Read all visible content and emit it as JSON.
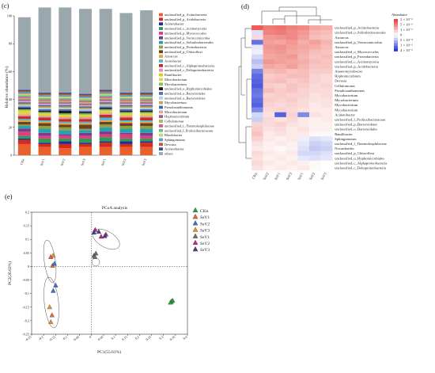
{
  "panels": {
    "c": "(c)",
    "d": "(d)",
    "e": "(e)"
  },
  "colors": {
    "others": "#9aa8ae",
    "heat_high": "#e8473e",
    "heat_mid": "#ffffff",
    "heat_low": "#2a3bd6",
    "pcoa_groups": [
      "#27a23b",
      "#e8643c",
      "#3a72c7",
      "#e5932f",
      "#6d6d6d",
      "#c1287c",
      "#4a3d8f"
    ]
  },
  "chart_data": [
    {
      "type": "bar",
      "stacked": true,
      "ylabel": "Relative abundance (%)",
      "ylim": [
        0,
        100
      ],
      "yticks": [
        0,
        20,
        40,
        60,
        80,
        100
      ],
      "categories": [
        "CKn",
        "SsV1",
        "SsV2",
        "SsV3",
        "SsV1",
        "SsV2",
        "SsV3"
      ],
      "legend_position": "right",
      "series": [
        {
          "name": "unclassified_p_Actinobacteria",
          "color": "#e8612c",
          "values": [
            8,
            6,
            5,
            6,
            6,
            6,
            6
          ]
        },
        {
          "name": "unclassified_p_Acidobacteria",
          "color": "#d8281f",
          "values": [
            3,
            2,
            3,
            2,
            3,
            2,
            3
          ]
        },
        {
          "name": "Acinetobacter",
          "color": "#1e2e8a",
          "values": [
            1,
            1,
            2,
            1,
            1,
            2,
            1
          ]
        },
        {
          "name": "unclassified_c_Actinomycetia",
          "color": "#2f9a55",
          "values": [
            2,
            3,
            2,
            3,
            3,
            2,
            2
          ]
        },
        {
          "name": "unclassified_p_Myxococcales",
          "color": "#e43a82",
          "values": [
            3,
            2,
            2,
            2,
            2,
            3,
            2
          ]
        },
        {
          "name": "unclassified_p_Verrucomicrobia",
          "color": "#7b3a8c",
          "values": [
            2,
            2,
            1,
            2,
            2,
            1,
            2
          ]
        },
        {
          "name": "unclassified_o_Solirubrobacterales",
          "color": "#2a9fb0",
          "values": [
            2,
            3,
            3,
            2,
            3,
            3,
            3
          ]
        },
        {
          "name": "unclassified_p_Proteobacteria",
          "color": "#8fa33a",
          "values": [
            1,
            2,
            2,
            1,
            2,
            2,
            2
          ]
        },
        {
          "name": "unclassified_p_Chloroflexi",
          "color": "#6e3f2a",
          "values": [
            2,
            2,
            2,
            3,
            2,
            2,
            2
          ]
        },
        {
          "name": "Azoarcus",
          "color": "#f0a530",
          "values": [
            1,
            1,
            1,
            1,
            1,
            1,
            1
          ]
        },
        {
          "name": "Acetobacter",
          "color": "#4db8d8",
          "values": [
            1,
            1,
            1,
            1,
            2,
            1,
            1
          ]
        },
        {
          "name": "unclassified_c_Alphaproteobacteria",
          "color": "#c0302c",
          "values": [
            2,
            2,
            2,
            2,
            2,
            2,
            2
          ]
        },
        {
          "name": "unclassified_c_Deltaproteobacteria",
          "color": "#ee8ab7",
          "values": [
            1,
            1,
            1,
            1,
            1,
            1,
            1
          ]
        },
        {
          "name": "Ramlibacter",
          "color": "#d0d02a",
          "values": [
            1,
            1,
            1,
            1,
            1,
            1,
            1
          ]
        },
        {
          "name": "Microbacterium",
          "color": "#e6d04a",
          "values": [
            2,
            1,
            1,
            1,
            1,
            1,
            1
          ]
        },
        {
          "name": "Mycobacterium",
          "color": "#7fc15a",
          "values": [
            1,
            1,
            1,
            1,
            1,
            1,
            1
          ]
        },
        {
          "name": "unclassified_o_Hyphomicrobiales",
          "color": "#1f1f1f",
          "values": [
            1,
            1,
            2,
            1,
            1,
            1,
            1
          ]
        },
        {
          "name": "unclassified_o_Bacteroidales",
          "color": "#5c6bb2",
          "values": [
            1,
            1,
            1,
            1,
            1,
            1,
            1
          ]
        },
        {
          "name": "unclassified_o_Bacteroidetes",
          "color": "#a3d6e6",
          "values": [
            1,
            1,
            1,
            1,
            1,
            1,
            1
          ]
        },
        {
          "name": "Mycobacterium",
          "color": "#c9a24a",
          "values": [
            1,
            1,
            1,
            1,
            1,
            1,
            1
          ]
        },
        {
          "name": "Pseudoxanthomonas",
          "color": "#3d6bb3",
          "values": [
            1,
            1,
            1,
            1,
            1,
            1,
            1
          ]
        },
        {
          "name": "Microbacterium",
          "color": "#e8a0a0",
          "values": [
            1,
            1,
            1,
            1,
            1,
            1,
            1
          ]
        },
        {
          "name": "Hyphomicrobium",
          "color": "#9b59b6",
          "values": [
            1,
            1,
            1,
            1,
            1,
            1,
            1
          ]
        },
        {
          "name": "Cellulomonas",
          "color": "#a3c04a",
          "values": [
            1,
            1,
            1,
            1,
            1,
            1,
            1
          ]
        },
        {
          "name": "unclassified_f_Thermoleophilaceae",
          "color": "#d75a9a",
          "values": [
            1,
            1,
            1,
            1,
            1,
            1,
            1
          ]
        },
        {
          "name": "unclassified_f_Proliuxibacteraceae",
          "color": "#6bbf7a",
          "values": [
            1,
            1,
            1,
            1,
            1,
            1,
            1
          ]
        },
        {
          "name": "Rhodobacter",
          "color": "#c2d86e",
          "values": [
            1,
            1,
            1,
            1,
            1,
            1,
            1
          ]
        },
        {
          "name": "Sphingomonas",
          "color": "#5a9ed6",
          "values": [
            1,
            1,
            1,
            1,
            1,
            1,
            1
          ]
        },
        {
          "name": "Devosia",
          "color": "#b85c2a",
          "values": [
            1,
            1,
            1,
            1,
            1,
            1,
            1
          ]
        },
        {
          "name": "Acinetobacter",
          "color": "#3e4f8f",
          "values": [
            1,
            1,
            1,
            1,
            1,
            1,
            1
          ]
        },
        {
          "name": "others",
          "color": "#9aa8ae",
          "values": [
            52,
            61,
            61,
            61,
            58,
            57,
            59
          ]
        }
      ]
    },
    {
      "type": "heatmap",
      "columns": [
        "CKn",
        "SsV2",
        "SsV1",
        "SsV3",
        "SsV1",
        "SsV2",
        "SsV3"
      ],
      "rows": [
        "unclassified_p_Actinobacteria",
        "unclassified_o_Solirubrobacterales",
        "Azoarcus",
        "unclassified_p_Verrucomicrobia",
        "Azoarcus",
        "unclassified_o_Myxococcales",
        "unclassified_p_Proteobacteria",
        "unclassified_c_Actinomycetia",
        "unclassified_p_Acidobacteria",
        "Anaeromyxobacter",
        "Hyphomicrobium",
        "Devosia",
        "Cellulomonas",
        "Pseudoxanthomonas",
        "Mycobacterium",
        "Microbacterium",
        "Mycobacterium",
        "Mycobacterium",
        "Acinetobacter",
        "unclassified_f_Proliuxibacteraceae",
        "unclassified_p_Bacteroidetes",
        "unclassified_o_Bacteroidales",
        "Ramlibacter",
        "Sphingomonas",
        "unclassified_f_Thermoleophilaceae",
        "Nocardioides",
        "unclassified_p_Chloroflexi",
        "unclassified_o_Hyphomicrobiales",
        "unclassified_c_Alphaproteobacteria",
        "unclassified_c_Deltaproteobacteria"
      ],
      "legend_title": "Abundance",
      "legend_ticks": [
        "2 × 10⁻²",
        "5 × 10⁻³",
        "1 × 10⁻³",
        "0",
        "5 × 10⁻⁴",
        "1 × 10⁻³",
        "4 × 10⁻³"
      ],
      "values": [
        [
          2.2,
          1.8,
          1.9,
          1.7,
          1.6,
          1.2,
          1.1
        ],
        [
          -0.4,
          1.7,
          1.8,
          1.6,
          1.4,
          1.0,
          0.9
        ],
        [
          0.5,
          1.4,
          1.5,
          1.6,
          1.3,
          0.9,
          0.8
        ],
        [
          -1.8,
          1.3,
          1.2,
          1.4,
          1.1,
          1.3,
          1.0
        ],
        [
          -0.3,
          1.4,
          1.5,
          1.3,
          1.2,
          1.1,
          0.9
        ],
        [
          -0.2,
          1.3,
          1.4,
          1.2,
          1.1,
          0.9,
          0.8
        ],
        [
          -0.5,
          1.2,
          1.3,
          1.4,
          1.0,
          0.8,
          0.9
        ],
        [
          -0.8,
          1.4,
          1.3,
          1.2,
          1.1,
          0.9,
          0.8
        ],
        [
          -0.6,
          1.2,
          1.1,
          1.3,
          1.0,
          0.8,
          0.8
        ],
        [
          -1.6,
          0.9,
          1.0,
          0.8,
          0.9,
          0.7,
          0.7
        ],
        [
          -1.9,
          0.7,
          0.8,
          0.9,
          0.9,
          0.6,
          0.5
        ],
        [
          -2.0,
          0.8,
          0.9,
          0.7,
          0.8,
          0.6,
          0.5
        ],
        [
          -2.1,
          0.7,
          0.6,
          0.8,
          0.7,
          0.5,
          0.6
        ],
        [
          -1.8,
          0.9,
          0.7,
          0.8,
          0.6,
          0.5,
          0.5
        ],
        [
          -1.7,
          0.6,
          0.7,
          0.6,
          0.6,
          0.4,
          0.5
        ],
        [
          -1.9,
          0.7,
          0.6,
          0.7,
          0.5,
          0.4,
          0.4
        ],
        [
          -2.0,
          0.6,
          0.5,
          0.6,
          0.5,
          0.3,
          0.4
        ],
        [
          -1.5,
          0.5,
          0.6,
          0.5,
          0.4,
          0.3,
          0.3
        ],
        [
          -0.5,
          0.4,
          -2.0,
          0.6,
          -1.5,
          0.4,
          0.3
        ],
        [
          -0.6,
          0.5,
          0.4,
          0.5,
          0.3,
          0.2,
          0.3
        ],
        [
          0.6,
          0.5,
          0.6,
          0.4,
          0.3,
          0.2,
          0.2
        ],
        [
          0.7,
          0.4,
          0.5,
          0.3,
          0.4,
          0.2,
          0.2
        ],
        [
          0.8,
          0.3,
          0.4,
          0.3,
          0.3,
          0.1,
          0.1
        ],
        [
          0.6,
          0.3,
          0.2,
          0.3,
          -0.2,
          -0.4,
          -0.3
        ],
        [
          0.4,
          0.2,
          0.3,
          0.2,
          -0.3,
          -0.6,
          -0.5
        ],
        [
          0.3,
          0.2,
          0.1,
          0.2,
          -0.4,
          -0.7,
          -0.6
        ],
        [
          0.5,
          0.3,
          0.2,
          0.3,
          -0.5,
          -0.5,
          -0.4
        ],
        [
          0.4,
          0.2,
          0.3,
          0.2,
          -0.3,
          -0.4,
          -0.3
        ],
        [
          0.5,
          0.3,
          0.2,
          0.3,
          0.2,
          0.1,
          0.0
        ],
        [
          0.4,
          0.2,
          0.3,
          0.2,
          0.3,
          0.1,
          0.0
        ]
      ]
    },
    {
      "type": "scatter",
      "title": "PCoA analysis",
      "xlabel": "PC1(55.61%)",
      "ylabel": "PC2(26.62%)",
      "xlim": [
        -0.25,
        0.4
      ],
      "ylim": [
        -0.25,
        0.2
      ],
      "xticks": [
        "-0.25",
        "-0.2",
        "-0.15",
        "-0.1",
        "-0.05",
        "0",
        "0.05",
        "0.1",
        "0.15",
        "0.2",
        "0.25",
        "0.3",
        "0.35",
        "0.4"
      ],
      "yticks": [
        "0.2",
        "0.15",
        "0.1",
        "0.05",
        "0",
        "-0.05",
        "-0.1",
        "-0.15",
        "-0.2",
        "-0.25"
      ],
      "legend_position": "right",
      "series": [
        {
          "name": "CKn",
          "color": "#27a23b",
          "points": [
            [
              0.333,
              -0.13
            ],
            [
              0.338,
              -0.126
            ],
            [
              0.329,
              -0.133
            ]
          ]
        },
        {
          "name": "SsV1",
          "color": "#e8643c",
          "points": [
            [
              -0.17,
              0.035
            ],
            [
              -0.163,
              0.003
            ],
            [
              -0.165,
              -0.18
            ]
          ]
        },
        {
          "name": "SsV2",
          "color": "#3a72c7",
          "points": [
            [
              -0.155,
              0.01
            ],
            [
              -0.16,
              -0.09
            ],
            [
              -0.15,
              -0.07
            ]
          ]
        },
        {
          "name": "SsV3",
          "color": "#e5932f",
          "points": [
            [
              -0.175,
              -0.15
            ],
            [
              -0.17,
              -0.205
            ],
            [
              -0.16,
              0.04
            ]
          ]
        },
        {
          "name": "SsV1",
          "color": "#6d6d6d",
          "points": [
            [
              0.01,
              0.04
            ],
            [
              0.018,
              0.048
            ],
            [
              0.014,
              0.035
            ]
          ]
        },
        {
          "name": "SsV2",
          "color": "#c1287c",
          "points": [
            [
              0.015,
              0.135
            ],
            [
              0.04,
              0.11
            ],
            [
              0.06,
              0.118
            ]
          ]
        },
        {
          "name": "SsV3",
          "color": "#4a3d8f",
          "points": [
            [
              0.03,
              0.128
            ],
            [
              0.055,
              0.112
            ],
            [
              0.01,
              0.125
            ]
          ]
        }
      ]
    }
  ]
}
